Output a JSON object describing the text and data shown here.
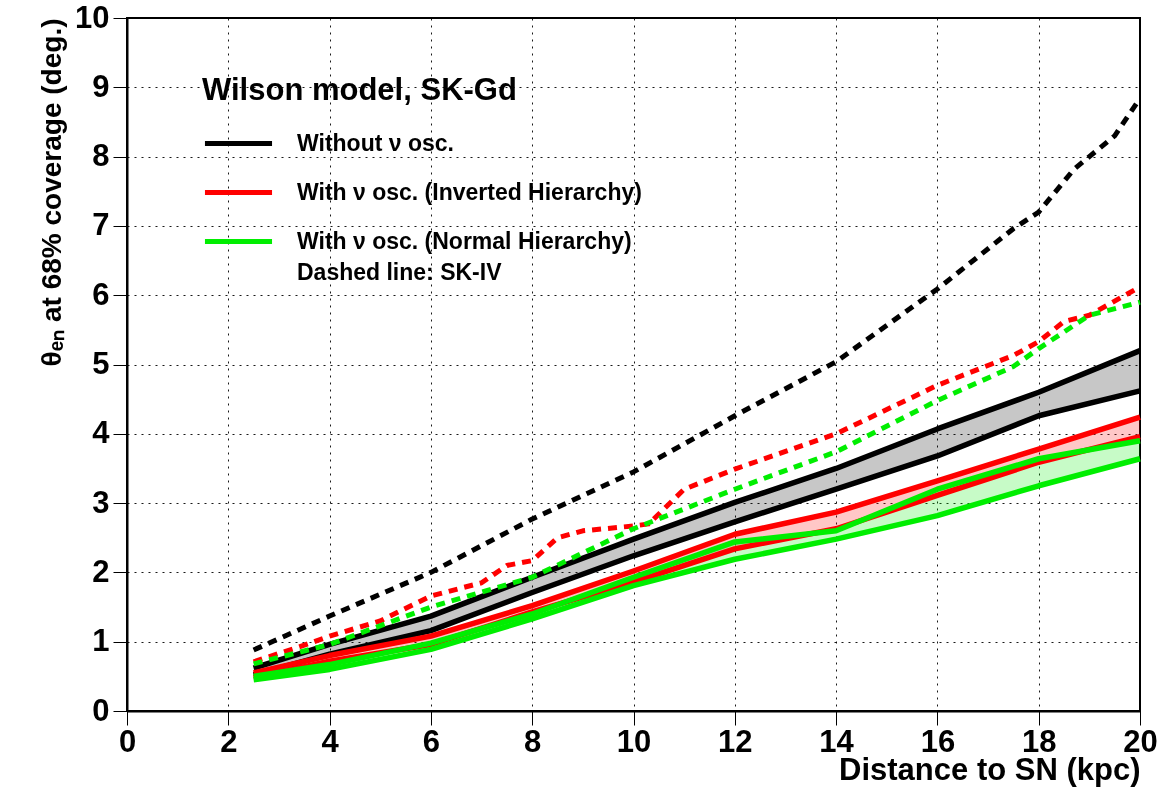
{
  "chart_data": {
    "type": "line",
    "xlabel": "Distance to SN (kpc)",
    "ylabel": "θₑₙ at 68% coverage (deg.)",
    "legend_title": "Wilson model, SK-Gd",
    "legend": "top left",
    "grid": true,
    "marker": "none",
    "xlim": [
      0,
      20
    ],
    "xticks": [
      0,
      2,
      4,
      6,
      8,
      10,
      12,
      14,
      16,
      18,
      20
    ],
    "ylim": [
      0,
      10
    ],
    "yticks": [
      0,
      1,
      2,
      3,
      4,
      5,
      6,
      7,
      8,
      9,
      10
    ],
    "annotations": [
      "Dashed line: SK-IV"
    ],
    "series": [
      {
        "name": "Without ν osc.",
        "color": "#000000",
        "line_style": "solid",
        "x": [
          2.5,
          4,
          6,
          8,
          10,
          12,
          14,
          16,
          18,
          20
        ],
        "values": [
          0.62,
          0.96,
          1.37,
          1.93,
          2.48,
          3.01,
          3.5,
          4.07,
          4.6,
          5.2
        ],
        "lower": [
          0.52,
          0.82,
          1.16,
          1.71,
          2.24,
          2.73,
          3.2,
          3.68,
          4.26,
          4.62
        ],
        "upper": [
          0.62,
          0.96,
          1.37,
          1.93,
          2.48,
          3.01,
          3.5,
          4.07,
          4.6,
          5.2
        ]
      },
      {
        "color": "#000000",
        "line_style": "solid",
        "x": [
          2.5,
          4,
          6,
          8,
          10,
          12,
          14,
          16,
          18,
          20
        ],
        "values": [
          0.52,
          0.82,
          1.16,
          1.71,
          2.24,
          2.73,
          3.2,
          3.68,
          4.26,
          4.62
        ]
      },
      {
        "name": "With ν osc. (Inverted Hierarchy)",
        "color": "#ff0000",
        "line_style": "solid",
        "x": [
          2.5,
          4,
          6,
          8,
          10,
          12,
          14,
          16,
          18,
          20
        ],
        "values": [
          0.55,
          0.8,
          1.08,
          1.52,
          2.02,
          2.55,
          2.87,
          3.32,
          3.78,
          4.24
        ],
        "lower": [
          0.48,
          0.72,
          0.96,
          1.43,
          1.86,
          2.34,
          2.63,
          3.11,
          3.59,
          3.96
        ],
        "upper": [
          0.55,
          0.8,
          1.08,
          1.52,
          2.02,
          2.55,
          2.87,
          3.32,
          3.78,
          4.24
        ]
      },
      {
        "color": "#ff0000",
        "line_style": "solid",
        "x": [
          2.5,
          4,
          6,
          8,
          10,
          12,
          14,
          16,
          18,
          20
        ],
        "values": [
          0.48,
          0.72,
          0.96,
          1.43,
          1.86,
          2.34,
          2.63,
          3.11,
          3.59,
          3.96
        ]
      },
      {
        "name": "With ν osc. (Normal Hierarchy)",
        "color": "#00ee00",
        "line_style": "solid",
        "x": [
          2.5,
          4,
          6,
          8,
          10,
          12,
          14,
          16,
          18,
          20
        ],
        "values": [
          0.45,
          0.6,
          0.89,
          1.33,
          1.81,
          2.19,
          2.48,
          2.82,
          3.25,
          3.64
        ],
        "lower": [
          0.45,
          0.6,
          0.89,
          1.33,
          1.81,
          2.19,
          2.48,
          2.82,
          3.25,
          3.64
        ],
        "upper": [
          0.5,
          0.67,
          0.98,
          1.4,
          1.93,
          2.44,
          2.6,
          3.2,
          3.64,
          3.9
        ]
      },
      {
        "color": "#00ee00",
        "line_style": "solid",
        "x": [
          2.5,
          4,
          6,
          8,
          10,
          12,
          14,
          16,
          18,
          20
        ],
        "values": [
          0.5,
          0.67,
          0.98,
          1.4,
          1.93,
          2.44,
          2.6,
          3.2,
          3.64,
          3.9
        ]
      },
      {
        "color": "#000000",
        "line_style": "dashed",
        "x": [
          2.5,
          4,
          6,
          8,
          10,
          12,
          14,
          16,
          17.5,
          18,
          18.7,
          19,
          19.5,
          20
        ],
        "values": [
          0.88,
          1.37,
          2.0,
          2.77,
          3.45,
          4.26,
          5.04,
          6.09,
          6.96,
          7.2,
          7.82,
          8.0,
          8.3,
          8.84
        ]
      },
      {
        "color": "#ff0000",
        "line_style": "dashed",
        "x": [
          2.5,
          3.5,
          4,
          5,
          6,
          7,
          7.5,
          8,
          8.5,
          9,
          10,
          10.3,
          11,
          12,
          14,
          16,
          17.5,
          18,
          18.5,
          19,
          20
        ],
        "values": [
          0.71,
          0.95,
          1.08,
          1.3,
          1.66,
          1.85,
          2.1,
          2.17,
          2.5,
          2.6,
          2.67,
          2.7,
          3.2,
          3.49,
          4.0,
          4.7,
          5.13,
          5.33,
          5.62,
          5.71,
          6.12
        ]
      },
      {
        "color": "#00ee00",
        "line_style": "dashed",
        "x": [
          2.5,
          4,
          6,
          8,
          10,
          12,
          14,
          16,
          17.5,
          18,
          19,
          20
        ],
        "values": [
          0.68,
          0.96,
          1.5,
          1.93,
          2.63,
          3.2,
          3.74,
          4.48,
          4.97,
          5.23,
          5.71,
          5.9
        ]
      }
    ]
  }
}
